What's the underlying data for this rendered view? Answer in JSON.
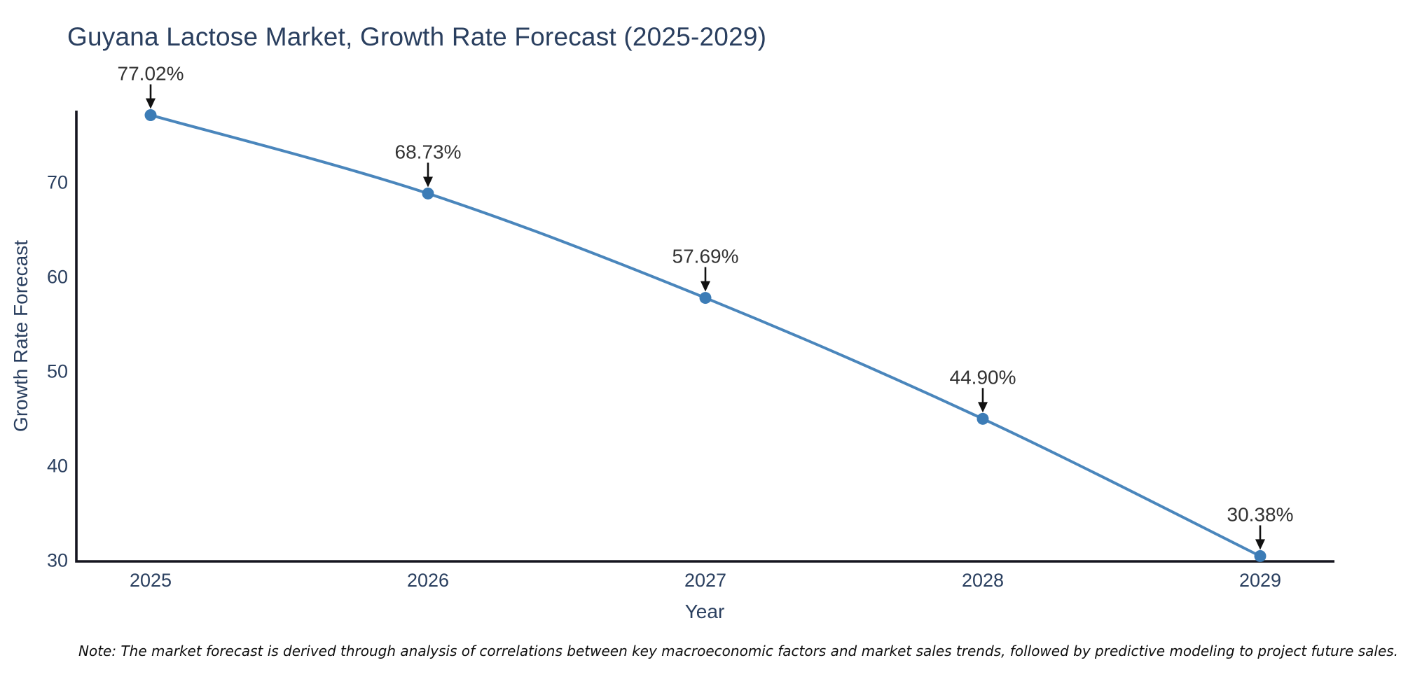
{
  "note": "Note: The market forecast is derived through analysis of correlations between key macroeconomic factors and market sales trends, followed by predictive modeling to project future sales.",
  "chart_data": {
    "type": "line",
    "title": "Guyana Lactose Market, Growth Rate Forecast (2025-2029)",
    "categories": [
      "2025",
      "2026",
      "2027",
      "2028",
      "2029"
    ],
    "values": [
      77.02,
      68.73,
      57.69,
      44.9,
      30.38
    ],
    "point_labels": [
      "77.02%",
      "68.73%",
      "57.69%",
      "44.90%",
      "30.38%"
    ],
    "xlabel": "Year",
    "ylabel": "Growth Rate Forecast",
    "yticks": [
      30,
      40,
      50,
      60,
      70
    ],
    "ylim": [
      29.82,
      77.5
    ],
    "grid": false,
    "legend": "none",
    "annotation_style": "value-label-with-down-arrow",
    "colors": {
      "line": "#4a86bc",
      "marker": "#3c7cb6",
      "axis": "#15151f",
      "arrow": "#111111",
      "label_text": "#2a3f5f",
      "annotation_text": "#333333"
    }
  }
}
